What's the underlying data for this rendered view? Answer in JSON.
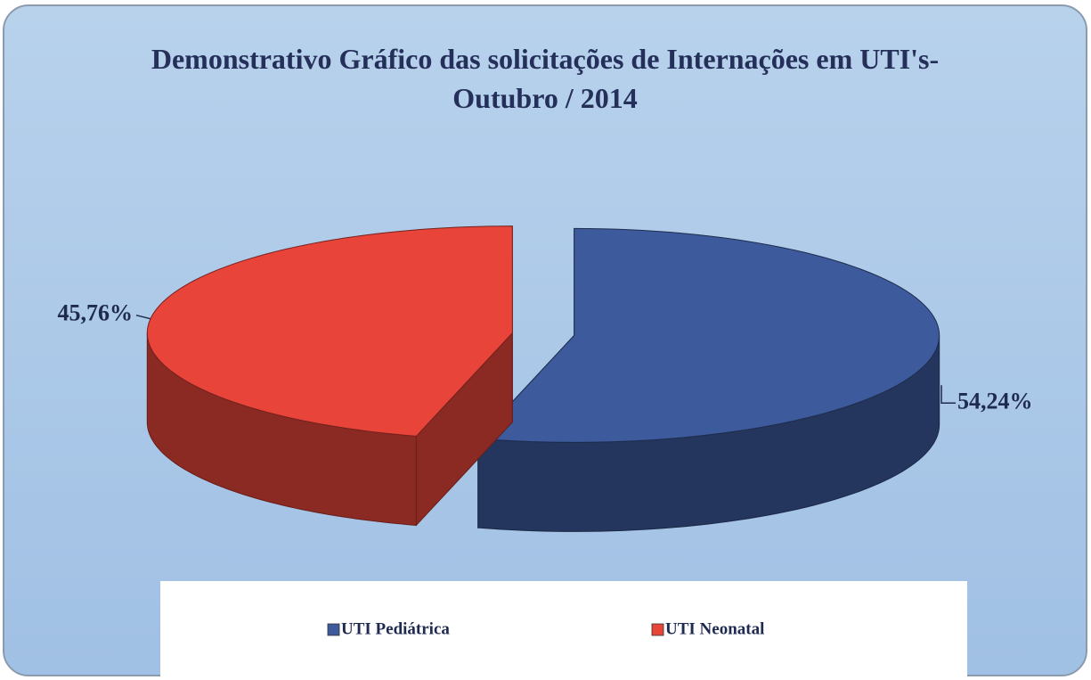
{
  "chart_data": {
    "type": "pie",
    "title": "Demonstrativo Gráfico das solicitações de Internações em UTI's- Outubro / 2014",
    "categories": [
      "UTI Pediátrica",
      "UTI Neonatal"
    ],
    "values": [
      54.24,
      45.76
    ],
    "value_labels": [
      "54,24%",
      "45,76%"
    ],
    "colors": [
      "#3d5a9c",
      "#e8443a"
    ],
    "legend": "bottom"
  }
}
